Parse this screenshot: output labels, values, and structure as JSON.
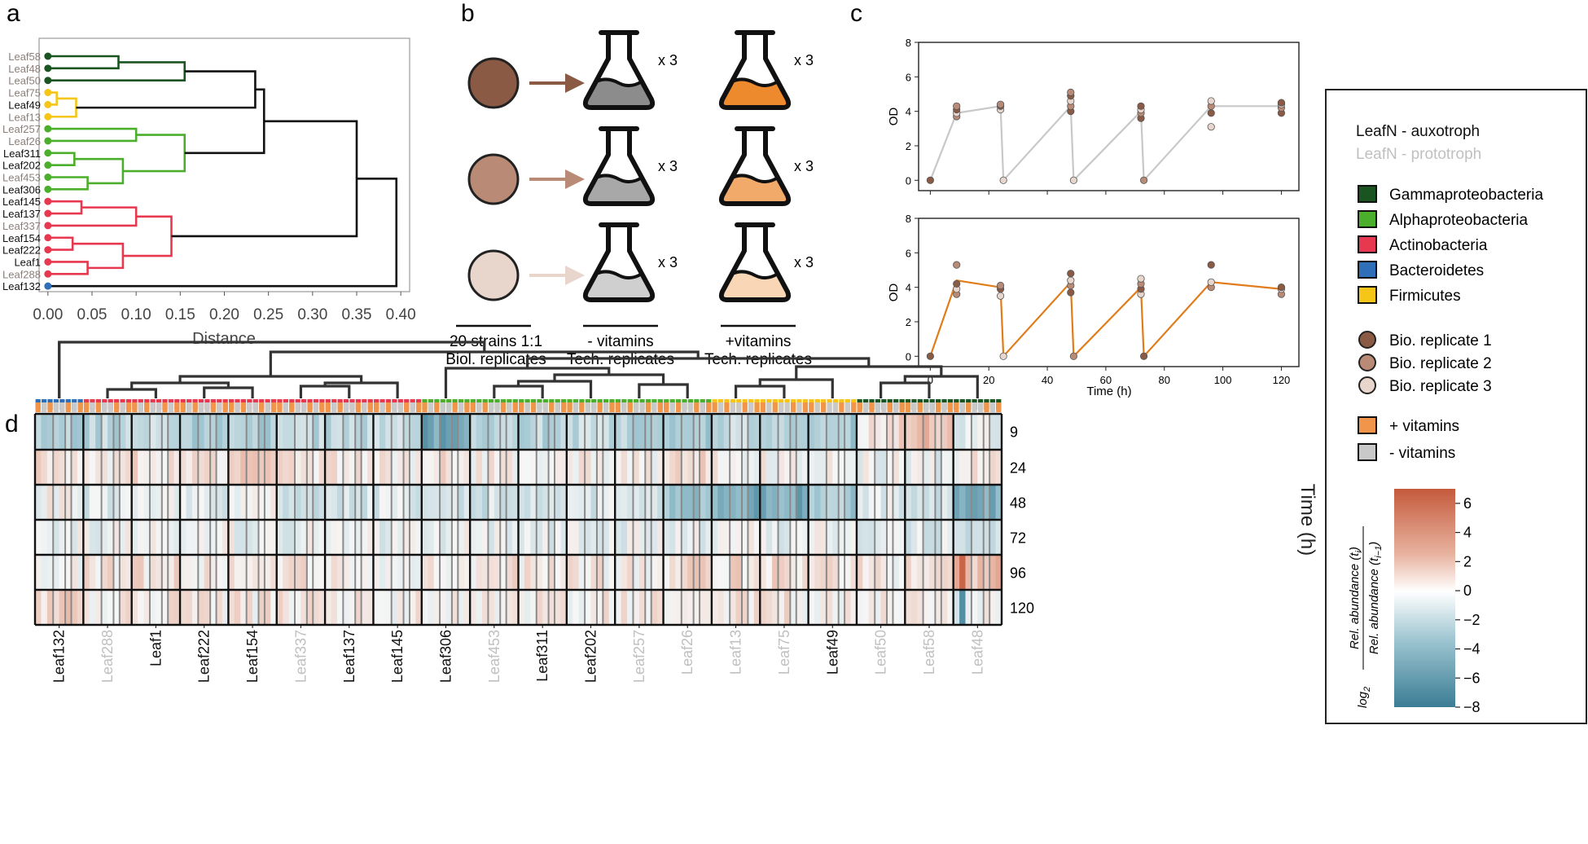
{
  "panel_labels": {
    "a": "a",
    "b": "b",
    "c": "c",
    "d": "d"
  },
  "colors": {
    "gamma": "#1a5420",
    "alpha": "#4caf2c",
    "actino": "#e8384f",
    "bactero": "#2e6fb8",
    "firmi": "#f5c518",
    "vit_plus": "#f0954a",
    "vit_minus": "#c9c9c9",
    "aux_text": "#111111",
    "proto_text": "#8a7f7a",
    "proto_light": "#c0c0c0",
    "line_minus": "#c8c8c8",
    "line_plus": "#e07c1a",
    "rep1": "#8a5a44",
    "rep2": "#b98a75",
    "rep3": "#e8d6cc",
    "flask_minus": "#8c8c8c",
    "flask_plus": "#ee8a2e"
  },
  "chart_data": [
    {
      "id": "a",
      "type": "dendrogram",
      "xlabel": "Distance",
      "xlim": [
        -0.01,
        0.41
      ],
      "ticks": [
        0.0,
        0.05,
        0.1,
        0.15,
        0.2,
        0.25,
        0.3,
        0.35,
        0.4
      ],
      "tick_labels": [
        "0.00",
        "0.05",
        "0.10",
        "0.15",
        "0.20",
        "0.25",
        "0.30",
        "0.35",
        "0.40"
      ],
      "leaves": [
        {
          "name": "Leaf58",
          "group": "gamma",
          "aux": false
        },
        {
          "name": "Leaf48",
          "group": "gamma",
          "aux": false
        },
        {
          "name": "Leaf50",
          "group": "gamma",
          "aux": false
        },
        {
          "name": "Leaf75",
          "group": "firmi",
          "aux": false
        },
        {
          "name": "Leaf49",
          "group": "firmi",
          "aux": true
        },
        {
          "name": "Leaf13",
          "group": "firmi",
          "aux": false
        },
        {
          "name": "Leaf257",
          "group": "alpha",
          "aux": false
        },
        {
          "name": "Leaf26",
          "group": "alpha",
          "aux": false
        },
        {
          "name": "Leaf311",
          "group": "alpha",
          "aux": true
        },
        {
          "name": "Leaf202",
          "group": "alpha",
          "aux": true
        },
        {
          "name": "Leaf453",
          "group": "alpha",
          "aux": false
        },
        {
          "name": "Leaf306",
          "group": "alpha",
          "aux": true
        },
        {
          "name": "Leaf145",
          "group": "actino",
          "aux": true
        },
        {
          "name": "Leaf137",
          "group": "actino",
          "aux": true
        },
        {
          "name": "Leaf337",
          "group": "actino",
          "aux": false
        },
        {
          "name": "Leaf154",
          "group": "actino",
          "aux": true
        },
        {
          "name": "Leaf222",
          "group": "actino",
          "aux": true
        },
        {
          "name": "Leaf1",
          "group": "actino",
          "aux": true
        },
        {
          "name": "Leaf288",
          "group": "actino",
          "aux": false
        },
        {
          "name": "Leaf132",
          "group": "bactero",
          "aux": true
        }
      ],
      "merges": [
        {
          "a": 0,
          "b": 1,
          "h": 0.08,
          "color": "gamma"
        },
        {
          "a": 20,
          "b": 2,
          "h": 0.155,
          "color": "gamma"
        },
        {
          "a": 3,
          "b": 4,
          "h": 0.01,
          "color": "firmi"
        },
        {
          "a": 22,
          "b": 5,
          "h": 0.032,
          "color": "firmi"
        },
        {
          "a": 21,
          "b": 23,
          "h": 0.235,
          "color": "black"
        },
        {
          "a": 8,
          "b": 9,
          "h": 0.03,
          "color": "alpha"
        },
        {
          "a": 10,
          "b": 11,
          "h": 0.045,
          "color": "alpha"
        },
        {
          "a": 25,
          "b": 26,
          "h": 0.085,
          "color": "alpha"
        },
        {
          "a": 6,
          "b": 7,
          "h": 0.1,
          "color": "alpha"
        },
        {
          "a": 28,
          "b": 27,
          "h": 0.155,
          "color": "alpha"
        },
        {
          "a": 24,
          "b": 29,
          "h": 0.245,
          "color": "black"
        },
        {
          "a": 12,
          "b": 13,
          "h": 0.038,
          "color": "actino"
        },
        {
          "a": 15,
          "b": 16,
          "h": 0.028,
          "color": "actino"
        },
        {
          "a": 17,
          "b": 18,
          "h": 0.045,
          "color": "actino"
        },
        {
          "a": 32,
          "b": 33,
          "h": 0.085,
          "color": "actino"
        },
        {
          "a": 31,
          "b": 14,
          "h": 0.1,
          "color": "actino"
        },
        {
          "a": 35,
          "b": 34,
          "h": 0.14,
          "color": "actino"
        },
        {
          "a": 30,
          "b": 36,
          "h": 0.35,
          "color": "black"
        },
        {
          "a": 37,
          "b": 19,
          "h": 0.395,
          "color": "black"
        }
      ]
    },
    {
      "id": "c-top",
      "type": "line",
      "condition": "- vitamins",
      "ylabel": "OD",
      "xlabel": "",
      "xlim": [
        -4,
        126
      ],
      "ylim": [
        -0.6,
        8
      ],
      "yticks": [
        0,
        2,
        4,
        6,
        8
      ],
      "xticks": [
        0,
        20,
        40,
        60,
        80,
        100,
        120
      ],
      "x": [
        0,
        9,
        24,
        25,
        48,
        49,
        72,
        73,
        96,
        120
      ],
      "y": [
        0,
        3.9,
        4.3,
        0,
        4.3,
        0,
        4.0,
        0,
        4.3,
        4.3
      ],
      "scatter": [
        [
          0,
          0
        ],
        [
          9,
          3.7
        ],
        [
          9,
          3.9
        ],
        [
          9,
          4.1
        ],
        [
          9,
          4.3
        ],
        [
          24,
          4.1
        ],
        [
          24,
          4.3
        ],
        [
          24,
          4.4
        ],
        [
          25,
          0
        ],
        [
          48,
          4.0
        ],
        [
          48,
          4.3
        ],
        [
          48,
          4.6
        ],
        [
          48,
          4.9
        ],
        [
          48,
          5.1
        ],
        [
          49,
          0
        ],
        [
          72,
          3.6
        ],
        [
          72,
          3.9
        ],
        [
          72,
          4.1
        ],
        [
          72,
          4.3
        ],
        [
          73,
          0
        ],
        [
          96,
          3.1
        ],
        [
          96,
          3.9
        ],
        [
          96,
          4.3
        ],
        [
          96,
          4.6
        ],
        [
          120,
          3.9
        ],
        [
          120,
          4.2
        ],
        [
          120,
          4.4
        ],
        [
          120,
          4.5
        ]
      ]
    },
    {
      "id": "c-bottom",
      "type": "line",
      "condition": "+ vitamins",
      "ylabel": "OD",
      "xlabel": "Time (h)",
      "xlim": [
        -4,
        126
      ],
      "ylim": [
        -0.6,
        8
      ],
      "yticks": [
        0,
        2,
        4,
        6,
        8
      ],
      "xticks": [
        0,
        20,
        40,
        60,
        80,
        100,
        120
      ],
      "x": [
        0,
        9,
        24,
        25,
        48,
        49,
        72,
        73,
        96,
        120
      ],
      "y": [
        0,
        4.4,
        4.0,
        0,
        4.3,
        0,
        4.0,
        0,
        4.3,
        3.9
      ],
      "scatter": [
        [
          0,
          0
        ],
        [
          9,
          3.6
        ],
        [
          9,
          3.9
        ],
        [
          9,
          4.2
        ],
        [
          9,
          5.3
        ],
        [
          24,
          3.5
        ],
        [
          24,
          3.9
        ],
        [
          24,
          4.1
        ],
        [
          25,
          0
        ],
        [
          48,
          3.7
        ],
        [
          48,
          4.1
        ],
        [
          48,
          4.4
        ],
        [
          48,
          4.8
        ],
        [
          49,
          0
        ],
        [
          72,
          3.6
        ],
        [
          72,
          3.9
        ],
        [
          72,
          4.2
        ],
        [
          72,
          4.5
        ],
        [
          73,
          0
        ],
        [
          96,
          4.0
        ],
        [
          96,
          4.3
        ],
        [
          96,
          5.3
        ],
        [
          120,
          3.6
        ],
        [
          120,
          3.9
        ],
        [
          120,
          4.0
        ]
      ]
    },
    {
      "id": "d",
      "type": "heatmap",
      "ylabel_right": "Time (h)",
      "row_labels": [
        "9",
        "24",
        "48",
        "72",
        "96",
        "120"
      ],
      "colorbar_ticks": [
        "6",
        "4",
        "2",
        "0",
        "−2",
        "−4",
        "−6",
        "−8"
      ],
      "colorbar_range": [
        -8,
        7
      ],
      "colorbar_label_top": "Rel. abundance (t",
      "colorbar_label_top_sub": "i",
      "colorbar_label_bottom": "Rel. abundance (t",
      "colorbar_label_bottom_sub": "i−1",
      "colorbar_label_prefix": "log",
      "colorbar_label_prefix_sub": "2",
      "strains": [
        {
          "name": "Leaf132",
          "group": "bactero",
          "aux": true
        },
        {
          "name": "Leaf288",
          "group": "actino",
          "aux": false
        },
        {
          "name": "Leaf1",
          "group": "actino",
          "aux": true
        },
        {
          "name": "Leaf222",
          "group": "actino",
          "aux": true
        },
        {
          "name": "Leaf154",
          "group": "actino",
          "aux": true
        },
        {
          "name": "Leaf337",
          "group": "actino",
          "aux": false
        },
        {
          "name": "Leaf137",
          "group": "actino",
          "aux": true
        },
        {
          "name": "Leaf145",
          "group": "actino",
          "aux": true
        },
        {
          "name": "Leaf306",
          "group": "alpha",
          "aux": true
        },
        {
          "name": "Leaf453",
          "group": "alpha",
          "aux": false
        },
        {
          "name": "Leaf311",
          "group": "alpha",
          "aux": true
        },
        {
          "name": "Leaf202",
          "group": "alpha",
          "aux": true
        },
        {
          "name": "Leaf257",
          "group": "alpha",
          "aux": false
        },
        {
          "name": "Leaf26",
          "group": "alpha",
          "aux": false
        },
        {
          "name": "Leaf13",
          "group": "firmi",
          "aux": false
        },
        {
          "name": "Leaf75",
          "group": "firmi",
          "aux": false
        },
        {
          "name": "Leaf49",
          "group": "firmi",
          "aux": true
        },
        {
          "name": "Leaf50",
          "group": "gamma",
          "aux": false
        },
        {
          "name": "Leaf58",
          "group": "gamma",
          "aux": false
        },
        {
          "name": "Leaf48",
          "group": "gamma",
          "aux": false
        }
      ],
      "strain_means": [
        [
          -3.2,
          1.2,
          0.1,
          -0.3,
          0.2,
          1.5
        ],
        [
          -2.6,
          0.3,
          -0.9,
          -0.2,
          0.7,
          0.8
        ],
        [
          -2.4,
          0.9,
          -0.8,
          -0.4,
          0.8,
          0.6
        ],
        [
          -3.4,
          0.6,
          -1.0,
          -0.4,
          0.5,
          0.6
        ],
        [
          -3.0,
          1.6,
          -0.4,
          -0.3,
          0.4,
          0.6
        ],
        [
          -2.5,
          0.5,
          -1.3,
          -0.5,
          0.5,
          0.5
        ],
        [
          -2.6,
          0.6,
          -1.2,
          -0.6,
          0.6,
          0.5
        ],
        [
          -2.4,
          0.4,
          -1.1,
          -0.5,
          0.4,
          0.4
        ],
        [
          -5.8,
          1.1,
          -1.7,
          -0.5,
          0.4,
          0.5
        ],
        [
          -3.0,
          0.2,
          -1.6,
          -0.7,
          0.6,
          0.4
        ],
        [
          -2.6,
          0.3,
          -1.5,
          -0.6,
          0.6,
          0.4
        ],
        [
          -2.2,
          0.5,
          -1.2,
          -0.6,
          0.4,
          0.3
        ],
        [
          -2.8,
          0.2,
          -1.9,
          -0.6,
          0.5,
          0.3
        ],
        [
          -3.4,
          1.4,
          -4.0,
          -0.6,
          1.2,
          0.1
        ],
        [
          -2.2,
          0.3,
          -5.2,
          -0.4,
          1.2,
          0.5
        ],
        [
          -3.3,
          0.3,
          -5.3,
          -0.5,
          1.3,
          0.6
        ],
        [
          -3.6,
          0.2,
          -3.4,
          -0.4,
          0.6,
          0.5
        ],
        [
          1.0,
          -0.3,
          -0.9,
          -0.9,
          0.5,
          0.6
        ],
        [
          2.6,
          -0.5,
          -1.4,
          -0.9,
          0.5,
          0.6
        ],
        [
          -0.6,
          0.4,
          -4.9,
          -1.6,
          2.5,
          -0.3
        ]
      ]
    }
  ],
  "panel_b": {
    "multiplier": "x 3",
    "cap_left_line1": "20 strains  1:1",
    "cap_left_line2": "Biol. replicates",
    "cap_mid_line1": "- vitamins",
    "cap_mid_line2": "Tech. replicates",
    "cap_right_line1": "+vitamins",
    "cap_right_line2": "Tech. replicates"
  },
  "legend": {
    "aux_label": "LeafN - auxotroph",
    "proto_label": "LeafN - prototroph",
    "groups": [
      {
        "key": "gamma",
        "label": "Gammaproteobacteria"
      },
      {
        "key": "alpha",
        "label": "Alphaproteobacteria"
      },
      {
        "key": "actino",
        "label": "Actinobacteria"
      },
      {
        "key": "bactero",
        "label": "Bacteroidetes"
      },
      {
        "key": "firmi",
        "label": "Firmicutes"
      }
    ],
    "replicates": [
      {
        "key": "rep1",
        "label": "Bio. replicate 1"
      },
      {
        "key": "rep2",
        "label": "Bio. replicate 2"
      },
      {
        "key": "rep3",
        "label": "Bio. replicate 3"
      }
    ],
    "vitamins": [
      {
        "key": "vit_plus",
        "label": "+ vitamins"
      },
      {
        "key": "vit_minus",
        "label": "- vitamins"
      }
    ]
  }
}
